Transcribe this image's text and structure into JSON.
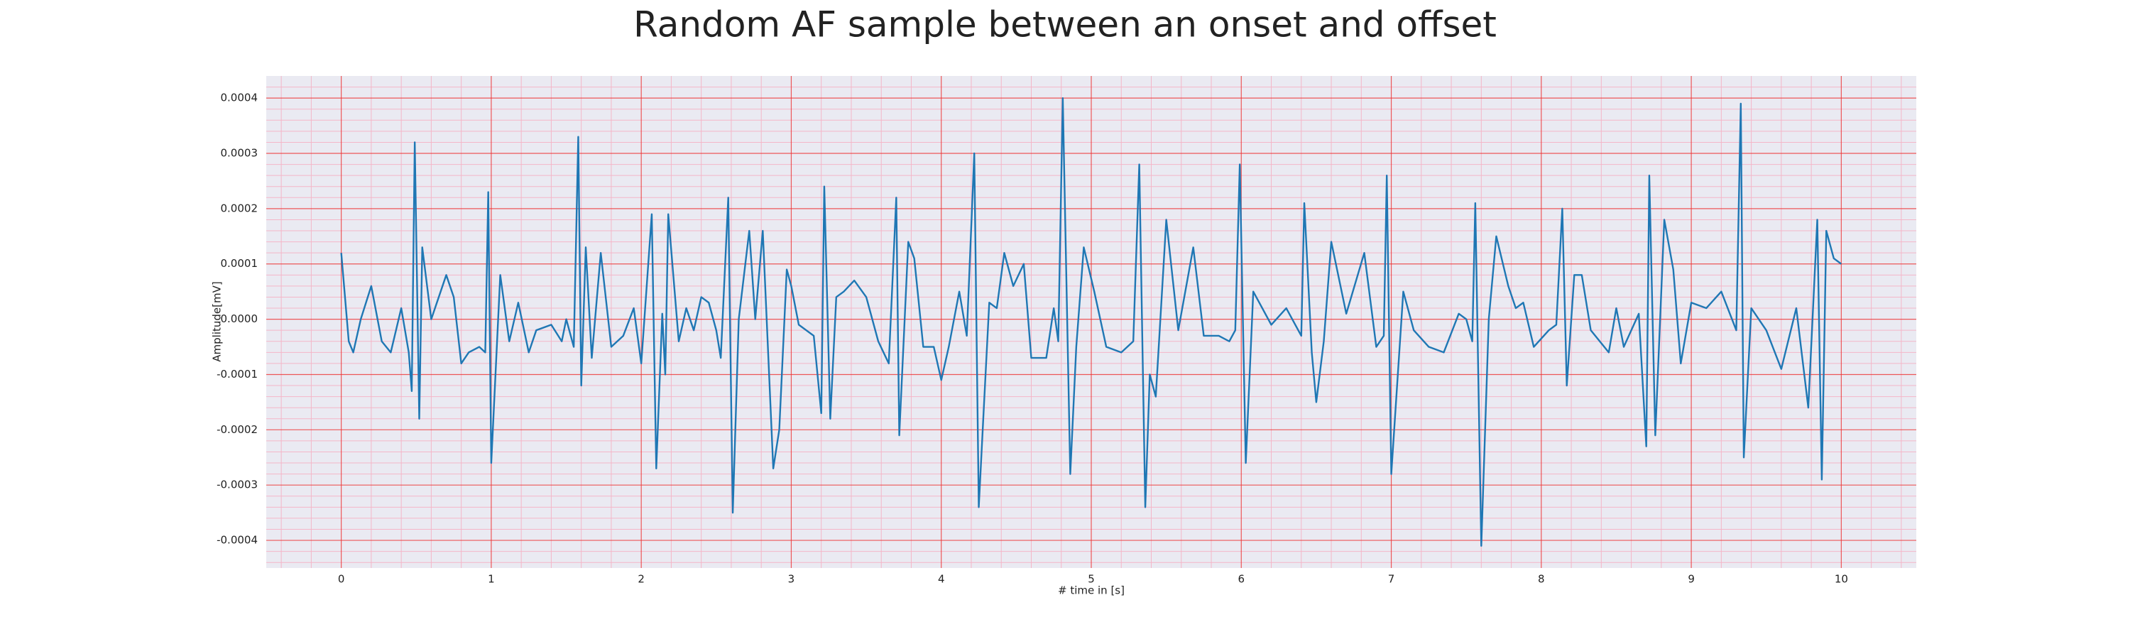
{
  "chart_data": {
    "type": "line",
    "title": "Random AF sample between an onset and offset",
    "xlabel": "# time in [s]",
    "ylabel": "Amplitude[mV]",
    "color": "#1f77b4",
    "grid": true,
    "minor_grid": true,
    "xlim": [
      -0.5,
      10.5
    ],
    "ylim": [
      -0.00045,
      0.00044
    ],
    "xticks": [
      0,
      1,
      2,
      3,
      4,
      5,
      6,
      7,
      8,
      9,
      10
    ],
    "yticks": [
      -0.0004,
      -0.0003,
      -0.0002,
      -0.0001,
      {
        "value": 0,
        "label": "0.0000"
      },
      0.0001,
      0.0002,
      0.0003,
      0.0004
    ],
    "x": [
      0,
      0.05,
      0.08,
      0.13,
      0.2,
      0.27,
      0.33,
      0.4,
      0.45,
      0.47,
      0.49,
      0.52,
      0.54,
      0.6,
      0.7,
      0.75,
      0.8,
      0.85,
      0.92,
      0.96,
      0.98,
      1.0,
      1.06,
      1.12,
      1.18,
      1.25,
      1.3,
      1.4,
      1.47,
      1.5,
      1.55,
      1.58,
      1.6,
      1.63,
      1.67,
      1.73,
      1.8,
      1.88,
      1.95,
      2.0,
      2.07,
      2.1,
      2.14,
      2.16,
      2.18,
      2.25,
      2.3,
      2.35,
      2.4,
      2.45,
      2.5,
      2.53,
      2.58,
      2.61,
      2.65,
      2.72,
      2.76,
      2.81,
      2.88,
      2.92,
      2.97,
      3.0,
      3.05,
      3.15,
      3.2,
      3.22,
      3.26,
      3.3,
      3.35,
      3.42,
      3.5,
      3.58,
      3.65,
      3.7,
      3.72,
      3.78,
      3.82,
      3.88,
      3.95,
      4.0,
      4.05,
      4.12,
      4.17,
      4.22,
      4.25,
      4.28,
      4.32,
      4.37,
      4.42,
      4.48,
      4.55,
      4.6,
      4.7,
      4.75,
      4.78,
      4.81,
      4.86,
      4.9,
      4.95,
      5.02,
      5.1,
      5.2,
      5.28,
      5.32,
      5.36,
      5.39,
      5.43,
      5.5,
      5.58,
      5.68,
      5.75,
      5.85,
      5.92,
      5.96,
      5.99,
      6.03,
      6.08,
      6.2,
      6.3,
      6.4,
      6.42,
      6.47,
      6.5,
      6.55,
      6.6,
      6.7,
      6.82,
      6.9,
      6.95,
      6.97,
      7.0,
      7.08,
      7.15,
      7.25,
      7.35,
      7.45,
      7.5,
      7.54,
      7.56,
      7.6,
      7.65,
      7.7,
      7.78,
      7.83,
      7.88,
      7.95,
      8.05,
      8.1,
      8.14,
      8.17,
      8.22,
      8.27,
      8.33,
      8.45,
      8.5,
      8.55,
      8.65,
      8.7,
      8.72,
      8.76,
      8.82,
      8.88,
      8.93,
      9.0,
      9.1,
      9.2,
      9.3,
      9.33,
      9.35,
      9.4,
      9.5,
      9.6,
      9.7,
      9.78,
      9.84,
      9.87,
      9.9,
      9.95,
      10.0
    ],
    "values": [
      0.00012,
      -4e-05,
      -6e-05,
      0.0,
      6e-05,
      -4e-05,
      -6e-05,
      2e-05,
      -6e-05,
      -0.00013,
      0.00032,
      -0.00018,
      0.00013,
      0.0,
      8e-05,
      4e-05,
      -8e-05,
      -6e-05,
      -5e-05,
      -6e-05,
      0.00023,
      -0.00026,
      8e-05,
      -4e-05,
      3e-05,
      -6e-05,
      -2e-05,
      -1e-05,
      -4e-05,
      0.0,
      -5e-05,
      0.00033,
      -0.00012,
      0.00013,
      -7e-05,
      0.00012,
      -5e-05,
      -3e-05,
      2e-05,
      -8e-05,
      0.00019,
      -0.00027,
      1e-05,
      -0.0001,
      0.00019,
      -4e-05,
      2e-05,
      -2e-05,
      4e-05,
      3e-05,
      -2e-05,
      -7e-05,
      0.00022,
      -0.00035,
      0.0,
      0.00016,
      0.0,
      0.00016,
      -0.00027,
      -0.0002,
      9e-05,
      6e-05,
      -1e-05,
      -3e-05,
      -0.00017,
      0.00024,
      -0.00018,
      4e-05,
      5e-05,
      7e-05,
      4e-05,
      -4e-05,
      -8e-05,
      0.00022,
      -0.00021,
      0.00014,
      0.00011,
      -5e-05,
      -5e-05,
      -0.00011,
      -5e-05,
      5e-05,
      -3e-05,
      0.0003,
      -0.00034,
      -0.00018,
      3e-05,
      2e-05,
      0.00012,
      6e-05,
      0.0001,
      -7e-05,
      -7e-05,
      2e-05,
      -4e-05,
      0.0004,
      -0.00028,
      -5e-05,
      0.00013,
      5e-05,
      -5e-05,
      -6e-05,
      -4e-05,
      0.00028,
      -0.00034,
      -0.0001,
      -0.00014,
      0.00018,
      -2e-05,
      0.00013,
      -3e-05,
      -3e-05,
      -4e-05,
      -2e-05,
      0.00028,
      -0.00026,
      5e-05,
      -1e-05,
      2e-05,
      -3e-05,
      0.00021,
      -6e-05,
      -0.00015,
      -4e-05,
      0.00014,
      1e-05,
      0.00012,
      -5e-05,
      -3e-05,
      0.00026,
      -0.00028,
      5e-05,
      -2e-05,
      -5e-05,
      -6e-05,
      1e-05,
      0.0,
      -4e-05,
      0.00021,
      -0.00041,
      0.0,
      0.00015,
      6e-05,
      2e-05,
      3e-05,
      -5e-05,
      -2e-05,
      -1e-05,
      0.0002,
      -0.00012,
      8e-05,
      8e-05,
      -2e-05,
      -6e-05,
      2e-05,
      -5e-05,
      1e-05,
      -0.00023,
      0.00026,
      -0.00021,
      0.00018,
      9e-05,
      -8e-05,
      3e-05,
      2e-05,
      5e-05,
      -2e-05,
      0.00039,
      -0.00025,
      2e-05,
      -2e-05,
      -9e-05,
      2e-05,
      -0.00016,
      0.00018,
      -0.00029,
      0.00016,
      0.00011,
      0.0001
    ]
  }
}
